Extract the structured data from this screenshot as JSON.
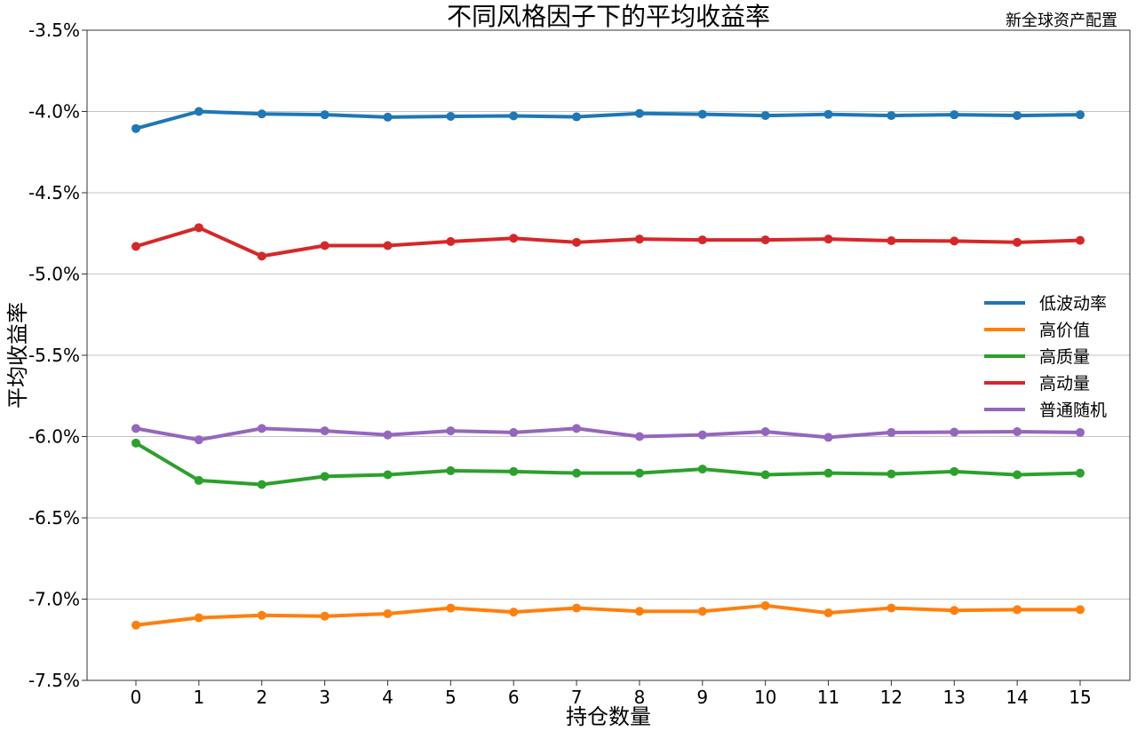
{
  "chart_data": {
    "type": "line",
    "title": "不同风格因子下的平均收益率",
    "corner_text": "新全球资产配置",
    "xlabel": "持仓数量",
    "ylabel": "平均收益率",
    "x": [
      0,
      1,
      2,
      3,
      4,
      5,
      6,
      7,
      8,
      9,
      10,
      11,
      12,
      13,
      14,
      15
    ],
    "x_tick_labels": [
      "0",
      "1",
      "2",
      "3",
      "4",
      "5",
      "6",
      "7",
      "8",
      "9",
      "10",
      "11",
      "12",
      "13",
      "14",
      "15"
    ],
    "ylim": [
      -7.5,
      -3.5
    ],
    "y_unit": "%",
    "y_ticks": [
      -3.5,
      -4.0,
      -4.5,
      -5.0,
      -5.5,
      -6.0,
      -6.5,
      -7.0,
      -7.5
    ],
    "y_tick_labels": [
      "-3.5%",
      "-4.0%",
      "-4.5%",
      "-5.0%",
      "-5.5%",
      "-6.0%",
      "-6.5%",
      "-7.0%",
      "-7.5%"
    ],
    "grid": "horizontal",
    "legend_position": "right",
    "series": [
      {
        "name": "低波动率",
        "color": "#1f77b4",
        "values": [
          -4.105,
          -4.0,
          -4.015,
          -4.02,
          -4.035,
          -4.03,
          -4.027,
          -4.033,
          -4.012,
          -4.017,
          -4.025,
          -4.018,
          -4.025,
          -4.02,
          -4.025,
          -4.02
        ]
      },
      {
        "name": "高价值",
        "color": "#ff7f0e",
        "values": [
          -7.16,
          -7.115,
          -7.1,
          -7.105,
          -7.09,
          -7.055,
          -7.08,
          -7.055,
          -7.075,
          -7.075,
          -7.04,
          -7.085,
          -7.055,
          -7.07,
          -7.065,
          -7.065
        ]
      },
      {
        "name": "高质量",
        "color": "#2ca02c",
        "values": [
          -6.04,
          -6.27,
          -6.295,
          -6.245,
          -6.235,
          -6.21,
          -6.215,
          -6.225,
          -6.225,
          -6.2,
          -6.235,
          -6.225,
          -6.23,
          -6.215,
          -6.235,
          -6.225
        ]
      },
      {
        "name": "高动量",
        "color": "#d62728",
        "values": [
          -4.83,
          -4.715,
          -4.89,
          -4.825,
          -4.825,
          -4.8,
          -4.78,
          -4.805,
          -4.785,
          -4.79,
          -4.79,
          -4.785,
          -4.795,
          -4.797,
          -4.805,
          -4.793
        ]
      },
      {
        "name": "普通随机",
        "color": "#9467bd",
        "values": [
          -5.95,
          -6.02,
          -5.95,
          -5.965,
          -5.99,
          -5.965,
          -5.975,
          -5.95,
          -6.0,
          -5.99,
          -5.97,
          -6.005,
          -5.975,
          -5.973,
          -5.97,
          -5.975
        ]
      }
    ]
  }
}
